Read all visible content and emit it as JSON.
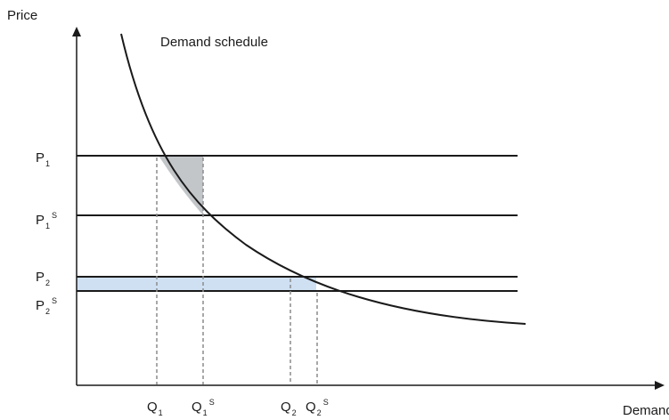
{
  "axes": {
    "y_label": "Price",
    "x_label": "Demand"
  },
  "curve": {
    "label": "Demand schedule"
  },
  "price_levels": [
    {
      "id": "p1",
      "base": "P",
      "sub": "1",
      "sup": ""
    },
    {
      "id": "p1s",
      "base": "P",
      "sub": "1",
      "sup": "S"
    },
    {
      "id": "p2",
      "base": "P",
      "sub": "2",
      "sup": ""
    },
    {
      "id": "p2s",
      "base": "P",
      "sub": "2",
      "sup": "S"
    }
  ],
  "quantity_levels": [
    {
      "id": "q1",
      "base": "Q",
      "sub": "1",
      "sup": ""
    },
    {
      "id": "q1s",
      "base": "Q",
      "sub": "1",
      "sup": "S"
    },
    {
      "id": "q2",
      "base": "Q",
      "sub": "2",
      "sup": ""
    },
    {
      "id": "q2s",
      "base": "Q",
      "sub": "2",
      "sup": "S"
    }
  ],
  "colors": {
    "line": "#1a1a1a",
    "dashed": "#8c8c8c",
    "triangle_fill": "#c3c6c9",
    "band_fill": "#cfe0f3"
  }
}
